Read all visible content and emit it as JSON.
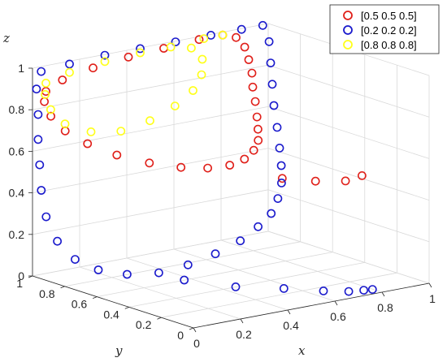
{
  "chart_data": {
    "type": "scatter",
    "projection": "3d",
    "title": "",
    "xlabel": "x",
    "ylabel": "y",
    "zlabel": "z",
    "xlim": [
      0,
      1
    ],
    "ylim": [
      0,
      1
    ],
    "zlim": [
      0,
      1
    ],
    "x_ticks": [
      "0",
      "0.2",
      "0.4",
      "0.6",
      "0.8",
      "1"
    ],
    "y_ticks": [
      "0",
      "0.2",
      "0.4",
      "0.6",
      "0.8",
      "1"
    ],
    "z_ticks": [
      "0",
      "0.2",
      "0.4",
      "0.6",
      "0.8",
      "1"
    ],
    "grid": true,
    "legend_position": "top-right",
    "marker": "open-circle",
    "series": [
      {
        "name": "[0.5 0.5 0.5]",
        "color": "#e0201a",
        "points": [
          [
            0.05,
            0.99,
            0.88
          ],
          [
            0.12,
            0.99,
            0.92
          ],
          [
            0.25,
            0.99,
            0.95
          ],
          [
            0.4,
            0.99,
            0.97
          ],
          [
            0.55,
            0.99,
            0.98
          ],
          [
            0.7,
            0.99,
            0.99
          ],
          [
            0.8,
            0.99,
            0.99
          ],
          [
            0.85,
            0.98,
            0.97
          ],
          [
            0.88,
            0.97,
            0.92
          ],
          [
            0.89,
            0.96,
            0.86
          ],
          [
            0.89,
            0.94,
            0.8
          ],
          [
            0.88,
            0.92,
            0.74
          ],
          [
            0.87,
            0.89,
            0.68
          ],
          [
            0.85,
            0.85,
            0.62
          ],
          [
            0.82,
            0.8,
            0.58
          ],
          [
            0.78,
            0.74,
            0.55
          ],
          [
            0.72,
            0.68,
            0.53
          ],
          [
            0.64,
            0.62,
            0.52
          ],
          [
            0.55,
            0.58,
            0.52
          ],
          [
            0.45,
            0.57,
            0.53
          ],
          [
            0.35,
            0.59,
            0.55
          ],
          [
            0.25,
            0.64,
            0.58
          ],
          [
            0.16,
            0.71,
            0.62
          ],
          [
            0.09,
            0.79,
            0.67
          ],
          [
            0.05,
            0.87,
            0.72
          ],
          [
            0.03,
            0.93,
            0.78
          ],
          [
            0.03,
            0.97,
            0.84
          ],
          [
            0.65,
            0.4,
            0.48
          ],
          [
            0.75,
            0.34,
            0.46
          ],
          [
            0.85,
            0.3,
            0.45
          ],
          [
            0.92,
            0.3,
            0.46
          ]
        ]
      },
      {
        "name": "[0.2 0.2 0.2]",
        "color": "#1a1acc",
        "points": [
          [
            0.03,
            0.99,
            0.98
          ],
          [
            0.15,
            0.99,
            0.99
          ],
          [
            0.3,
            0.99,
            1.0
          ],
          [
            0.45,
            0.99,
            1.0
          ],
          [
            0.6,
            0.99,
            1.0
          ],
          [
            0.75,
            0.99,
            1.0
          ],
          [
            0.88,
            0.99,
            1.0
          ],
          [
            0.97,
            0.99,
            1.0
          ],
          [
            0.99,
            0.98,
            0.92
          ],
          [
            0.99,
            0.97,
            0.82
          ],
          [
            0.99,
            0.96,
            0.72
          ],
          [
            0.99,
            0.95,
            0.62
          ],
          [
            0.99,
            0.93,
            0.52
          ],
          [
            0.98,
            0.9,
            0.43
          ],
          [
            0.96,
            0.86,
            0.36
          ],
          [
            0.92,
            0.8,
            0.3
          ],
          [
            0.85,
            0.72,
            0.26
          ],
          [
            0.76,
            0.63,
            0.23
          ],
          [
            0.65,
            0.55,
            0.21
          ],
          [
            0.52,
            0.47,
            0.19
          ],
          [
            0.38,
            0.42,
            0.17
          ],
          [
            0.25,
            0.4,
            0.15
          ],
          [
            0.14,
            0.42,
            0.13
          ],
          [
            0.06,
            0.5,
            0.12
          ],
          [
            0.02,
            0.62,
            0.12
          ],
          [
            0.01,
            0.75,
            0.14
          ],
          [
            0.01,
            0.86,
            0.2
          ],
          [
            0.01,
            0.93,
            0.3
          ],
          [
            0.01,
            0.96,
            0.42
          ],
          [
            0.01,
            0.97,
            0.54
          ],
          [
            0.01,
            0.98,
            0.66
          ],
          [
            0.01,
            0.98,
            0.78
          ],
          [
            0.01,
            0.99,
            0.9
          ],
          [
            0.2,
            0.35,
            0.1
          ],
          [
            0.35,
            0.25,
            0.06
          ],
          [
            0.5,
            0.17,
            0.04
          ],
          [
            0.62,
            0.1,
            0.02
          ],
          [
            0.7,
            0.06,
            0.01
          ],
          [
            0.75,
            0.04,
            0.01
          ],
          [
            0.78,
            0.03,
            0.01
          ]
        ]
      },
      {
        "name": "[0.8 0.8 0.8]",
        "color": "#ffff1a",
        "points": [
          [
            0.05,
            0.99,
            0.92
          ],
          [
            0.15,
            0.99,
            0.95
          ],
          [
            0.3,
            0.99,
            0.97
          ],
          [
            0.45,
            0.99,
            0.98
          ],
          [
            0.58,
            0.99,
            0.98
          ],
          [
            0.66,
            0.98,
            0.96
          ],
          [
            0.7,
            0.97,
            0.9
          ],
          [
            0.69,
            0.96,
            0.83
          ],
          [
            0.64,
            0.94,
            0.77
          ],
          [
            0.55,
            0.92,
            0.72
          ],
          [
            0.43,
            0.9,
            0.68
          ],
          [
            0.3,
            0.89,
            0.66
          ],
          [
            0.18,
            0.9,
            0.68
          ],
          [
            0.09,
            0.93,
            0.73
          ],
          [
            0.05,
            0.96,
            0.8
          ],
          [
            0.04,
            0.98,
            0.87
          ],
          [
            0.72,
            0.99,
            0.99
          ],
          [
            0.8,
            0.99,
            0.99
          ]
        ]
      }
    ]
  }
}
